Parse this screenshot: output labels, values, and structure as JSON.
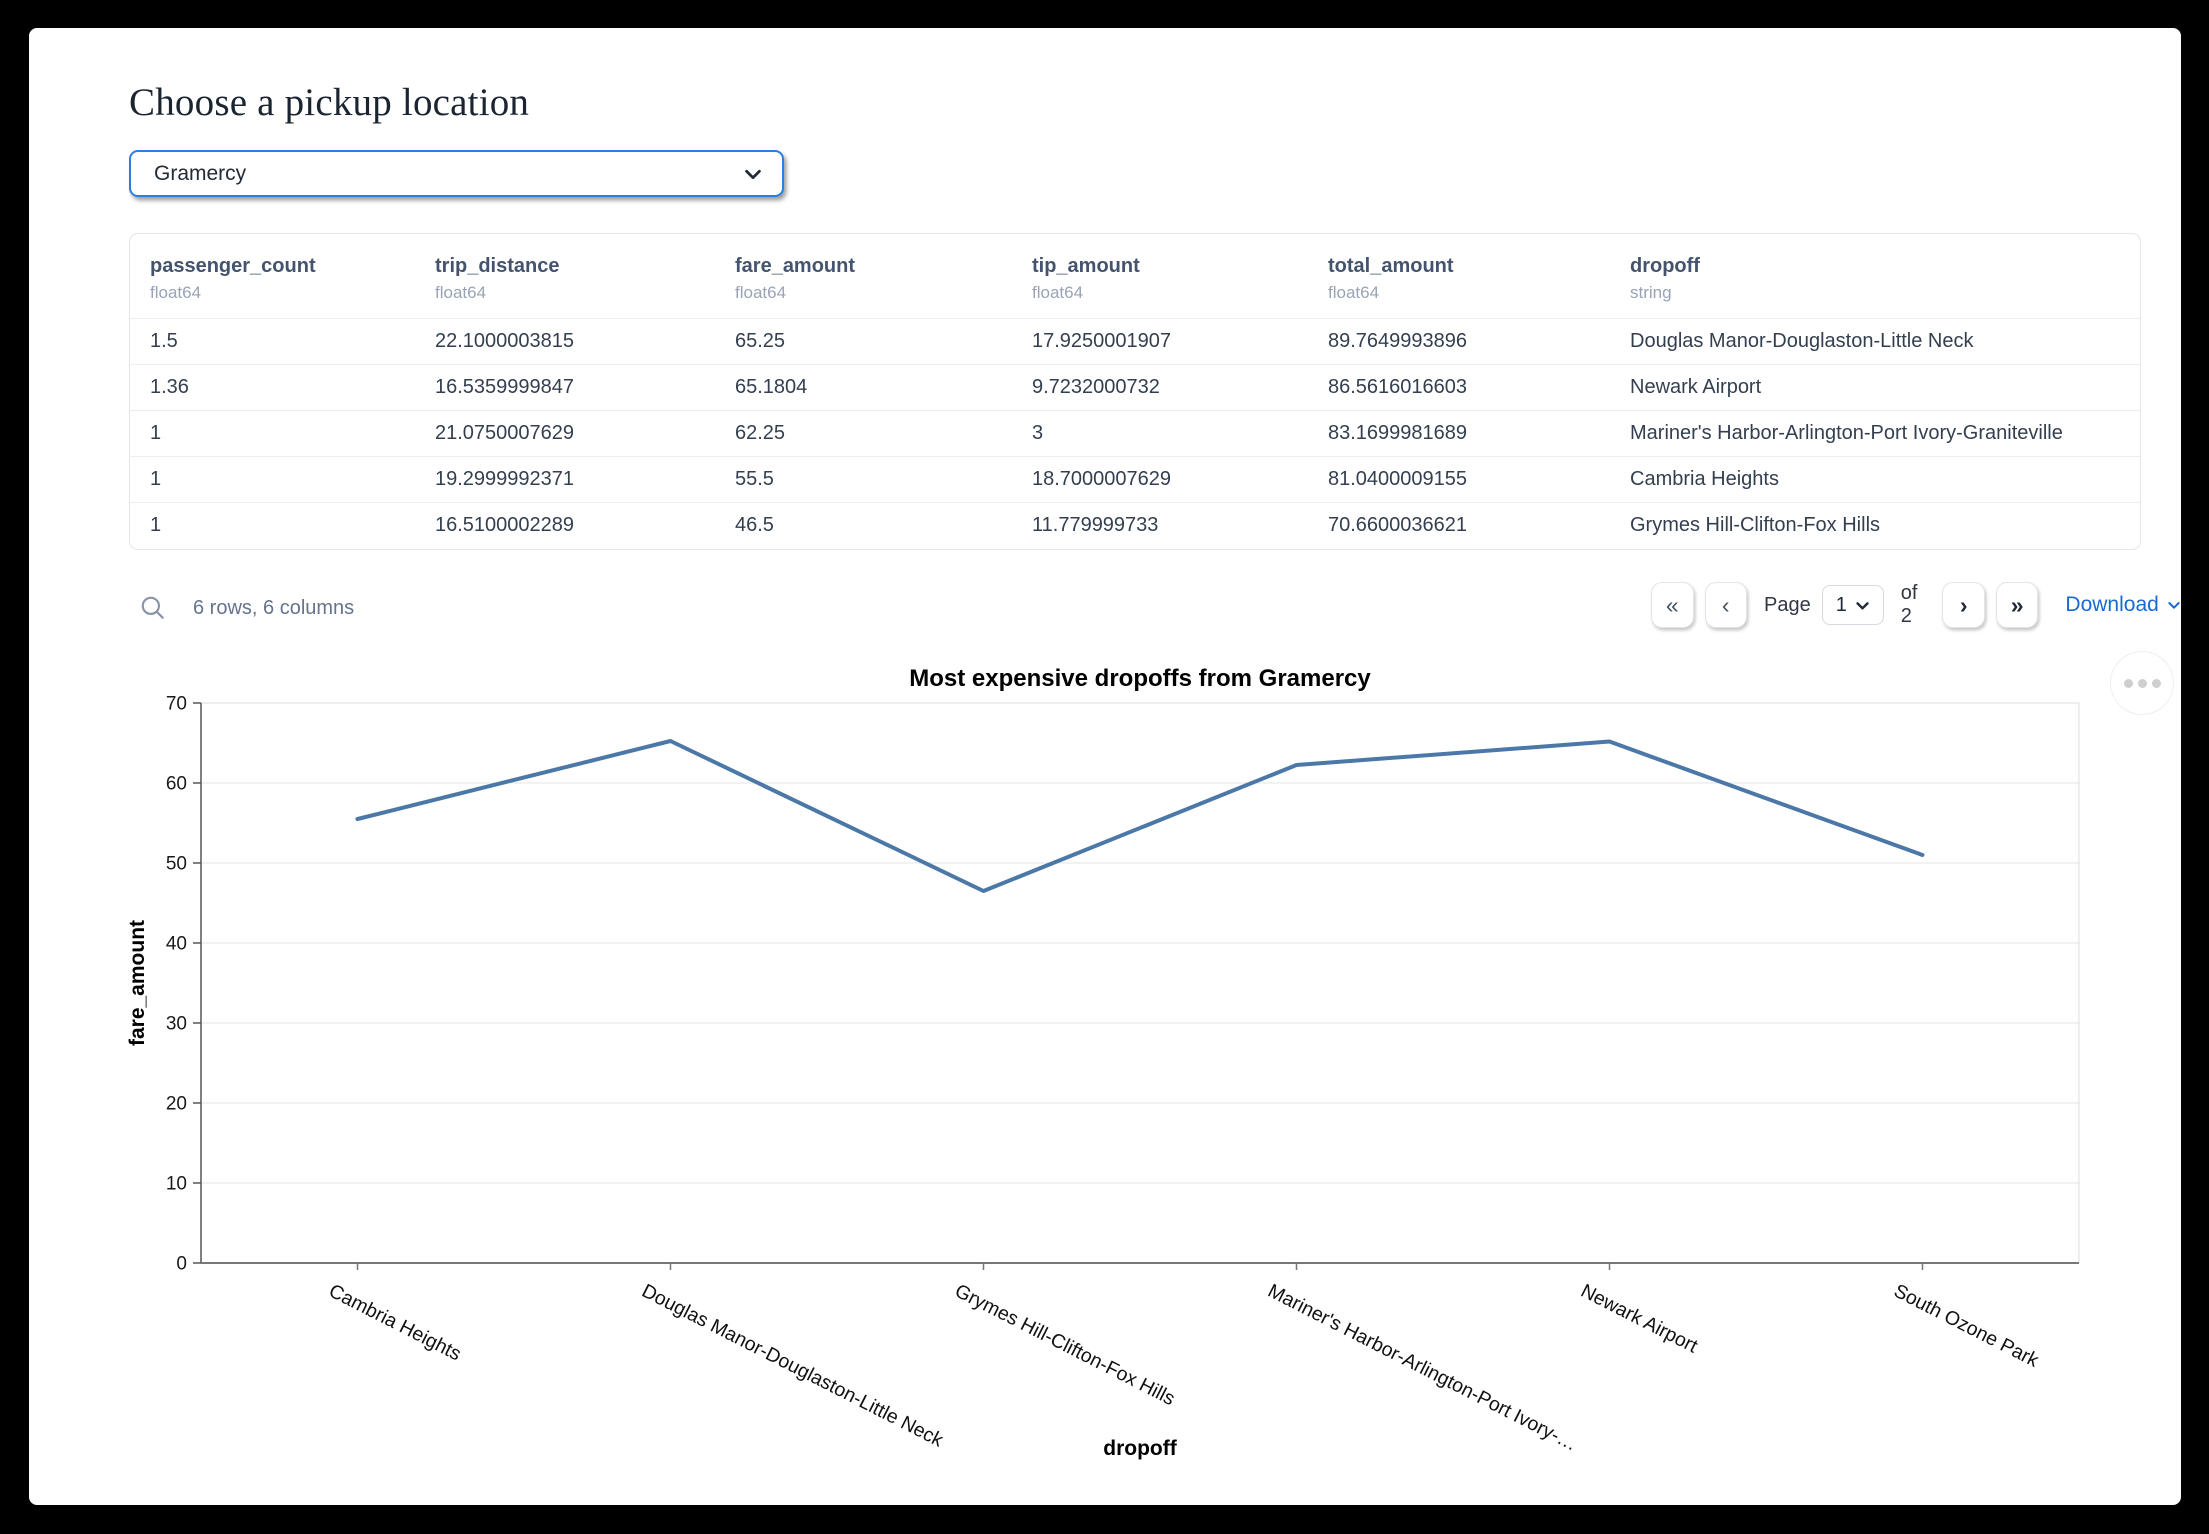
{
  "app": {
    "title": "Choose a pickup location"
  },
  "pickup": {
    "value": "Gramercy"
  },
  "colors": {
    "accent": "#2e7de0",
    "link": "#1769d4",
    "line": "#4c78a8"
  },
  "table": {
    "columns": [
      {
        "name": "passenger_count",
        "type": "float64"
      },
      {
        "name": "trip_distance",
        "type": "float64"
      },
      {
        "name": "fare_amount",
        "type": "float64"
      },
      {
        "name": "tip_amount",
        "type": "float64"
      },
      {
        "name": "total_amount",
        "type": "float64"
      },
      {
        "name": "dropoff",
        "type": "string"
      }
    ],
    "rows": [
      [
        "1.5",
        "22.1000003815",
        "65.25",
        "17.9250001907",
        "89.7649993896",
        "Douglas Manor-Douglaston-Little Neck"
      ],
      [
        "1.36",
        "16.5359999847",
        "65.1804",
        "9.7232000732",
        "86.5616016603",
        "Newark Airport"
      ],
      [
        "1",
        "21.0750007629",
        "62.25",
        "3",
        "83.1699981689",
        "Mariner's Harbor-Arlington-Port Ivory-Graniteville"
      ],
      [
        "1",
        "19.2999992371",
        "55.5",
        "18.7000007629",
        "81.0400009155",
        "Cambria Heights"
      ],
      [
        "1",
        "16.5100002289",
        "46.5",
        "11.779999733",
        "70.6600036621",
        "Grymes Hill-Clifton-Fox Hills"
      ]
    ],
    "footer": {
      "summary": "6 rows, 6 columns",
      "page_label": "Page",
      "page_value": "1",
      "of_label": "of 2",
      "download_label": "Download"
    }
  },
  "chart_data": {
    "type": "line",
    "title": "Most expensive dropoffs from Gramercy",
    "xlabel": "dropoff",
    "ylabel": "fare_amount",
    "categories": [
      "Cambria Heights",
      "Douglas Manor-Douglaston-Little Neck",
      "Grymes Hill-Clifton-Fox Hills",
      "Mariner's Harbor-Arlington-Port Ivory-Graniteville",
      "Newark Airport",
      "South Ozone Park"
    ],
    "tick_labels": [
      "Cambria Heights",
      "Douglas Manor-Douglaston-Little Neck",
      "Grymes Hill-Clifton-Fox Hills",
      "Mariner's Harbor-Arlington-Port Ivory-…",
      "Newark Airport",
      "South Ozone Park"
    ],
    "values": [
      55.5,
      65.25,
      46.5,
      62.25,
      65.1804,
      51.0
    ],
    "ylim": [
      0,
      70
    ],
    "ytick_step": 10,
    "grid": true,
    "legend": "none",
    "line_color": "#4c78a8"
  }
}
